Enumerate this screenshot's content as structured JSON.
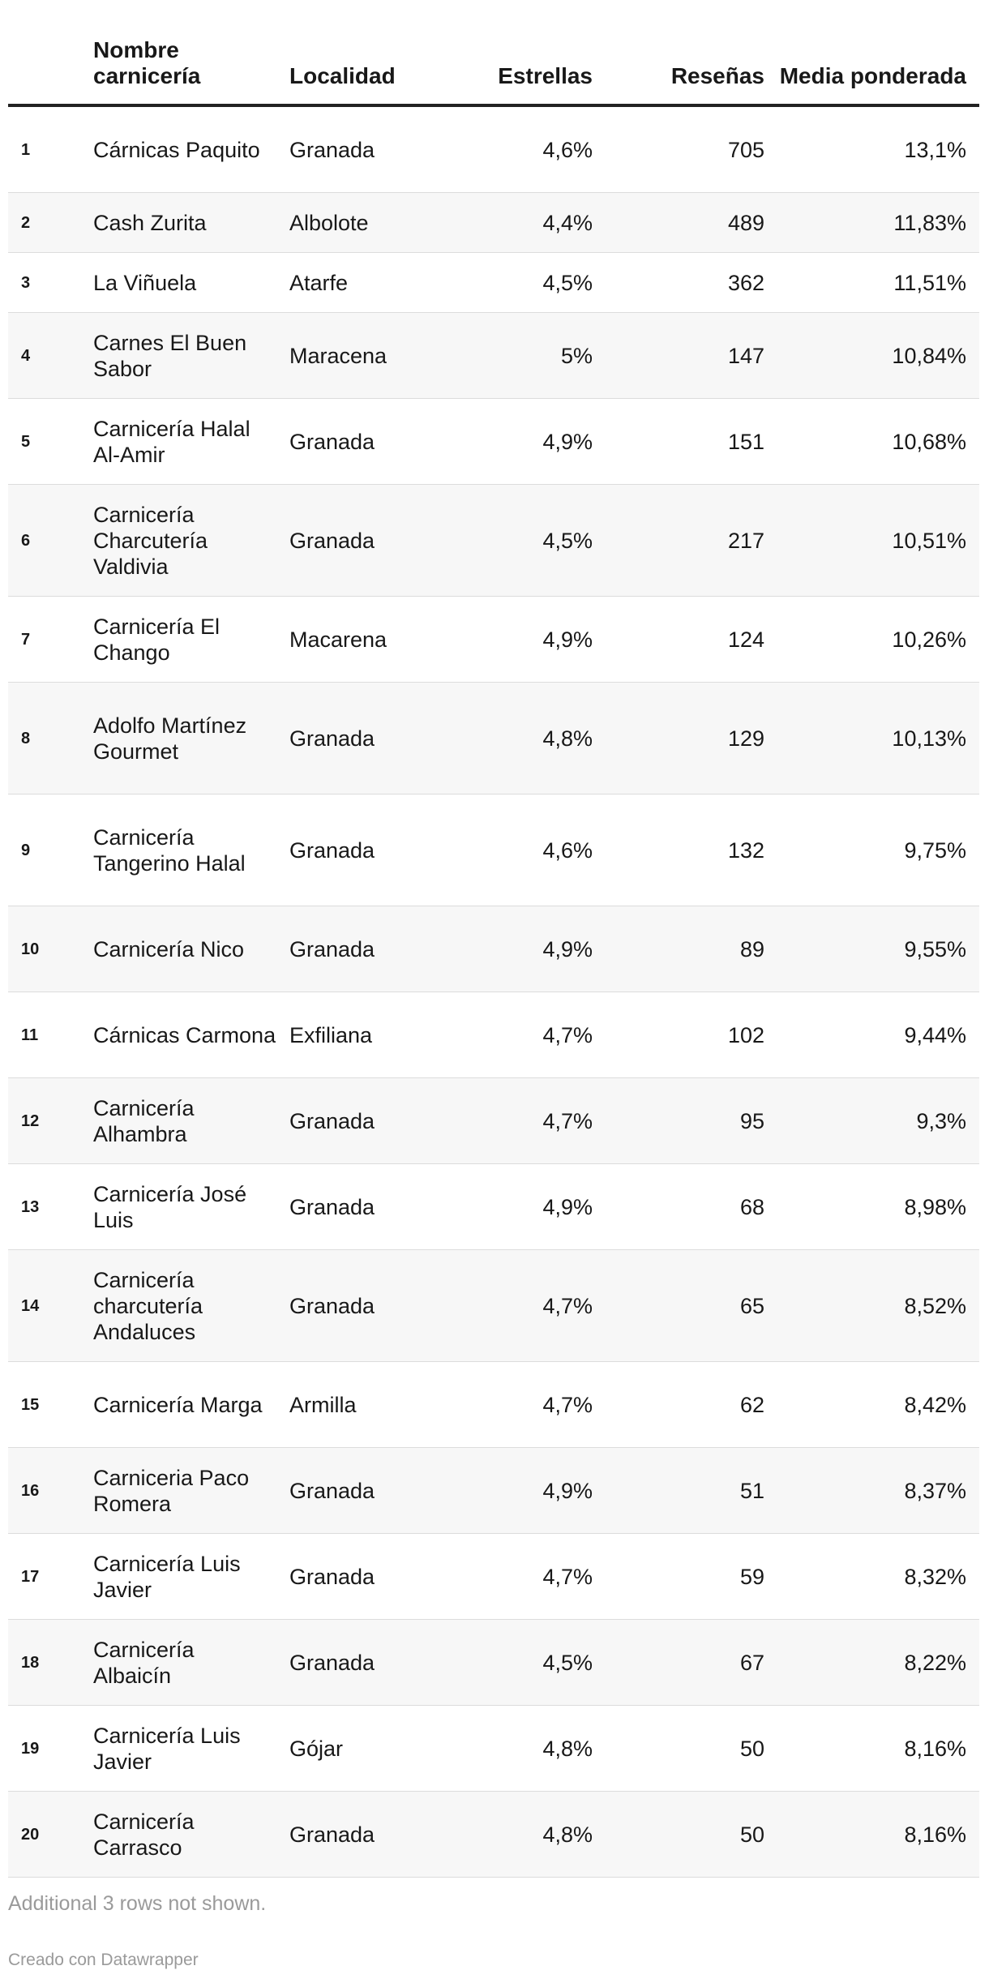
{
  "chart_data": {
    "type": "table",
    "columns": [
      "",
      "Nombre carnicería",
      "Localidad",
      "Estrellas",
      "Reseñas",
      "Media ponderada"
    ],
    "rows": [
      {
        "rank": "1",
        "name": "Cárnicas Paquito",
        "town": "Granada",
        "stars": "4,6%",
        "reviews": "705",
        "weighted": "13,1%"
      },
      {
        "rank": "2",
        "name": "Cash Zurita",
        "town": "Albolote",
        "stars": "4,4%",
        "reviews": "489",
        "weighted": "11,83%"
      },
      {
        "rank": "3",
        "name": "La Viñuela",
        "town": "Atarfe",
        "stars": "4,5%",
        "reviews": "362",
        "weighted": "11,51%"
      },
      {
        "rank": "4",
        "name": "Carnes El Buen Sabor",
        "town": "Maracena",
        "stars": "5%",
        "reviews": "147",
        "weighted": "10,84%"
      },
      {
        "rank": "5",
        "name": "Carnicería Halal Al-Amir",
        "town": "Granada",
        "stars": "4,9%",
        "reviews": "151",
        "weighted": "10,68%"
      },
      {
        "rank": "6",
        "name": "Carnicería Charcutería Valdivia",
        "town": "Granada",
        "stars": "4,5%",
        "reviews": "217",
        "weighted": "10,51%"
      },
      {
        "rank": "7",
        "name": "Carnicería El Chango",
        "town": "Macarena",
        "stars": "4,9%",
        "reviews": "124",
        "weighted": "10,26%"
      },
      {
        "rank": "8",
        "name": "Adolfo Martínez Gourmet",
        "town": "Granada",
        "stars": "4,8%",
        "reviews": "129",
        "weighted": "10,13%"
      },
      {
        "rank": "9",
        "name": "Carnicería Tangerino Halal",
        "town": "Granada",
        "stars": "4,6%",
        "reviews": "132",
        "weighted": "9,75%"
      },
      {
        "rank": "10",
        "name": "Carnicería Nico",
        "town": "Granada",
        "stars": "4,9%",
        "reviews": "89",
        "weighted": "9,55%"
      },
      {
        "rank": "11",
        "name": "Cárnicas Carmona",
        "town": "Exfiliana",
        "stars": "4,7%",
        "reviews": "102",
        "weighted": "9,44%"
      },
      {
        "rank": "12",
        "name": "Carnicería Alhambra",
        "town": "Granada",
        "stars": "4,7%",
        "reviews": "95",
        "weighted": "9,3%"
      },
      {
        "rank": "13",
        "name": "Carnicería José Luis",
        "town": "Granada",
        "stars": "4,9%",
        "reviews": "68",
        "weighted": "8,98%"
      },
      {
        "rank": "14",
        "name": "Carnicería charcutería Andaluces",
        "town": "Granada",
        "stars": "4,7%",
        "reviews": "65",
        "weighted": "8,52%"
      },
      {
        "rank": "15",
        "name": "Carnicería Marga",
        "town": "Armilla",
        "stars": "4,7%",
        "reviews": "62",
        "weighted": "8,42%"
      },
      {
        "rank": "16",
        "name": "Carniceria Paco Romera",
        "town": "Granada",
        "stars": "4,9%",
        "reviews": "51",
        "weighted": "8,37%"
      },
      {
        "rank": "17",
        "name": "Carnicería Luis Javier",
        "town": "Granada",
        "stars": "4,7%",
        "reviews": "59",
        "weighted": "8,32%"
      },
      {
        "rank": "18",
        "name": "Carnicería Albaicín",
        "town": "Granada",
        "stars": "4,5%",
        "reviews": "67",
        "weighted": "8,22%"
      },
      {
        "rank": "19",
        "name": "Carnicería Luis Javier",
        "town": "Gójar",
        "stars": "4,8%",
        "reviews": "50",
        "weighted": "8,16%"
      },
      {
        "rank": "20",
        "name": "Carnicería Carrasco",
        "town": "Granada",
        "stars": "4,8%",
        "reviews": "50",
        "weighted": "8,16%"
      }
    ],
    "note": "Additional 3 rows not shown.",
    "credit": "Creado con Datawrapper"
  }
}
